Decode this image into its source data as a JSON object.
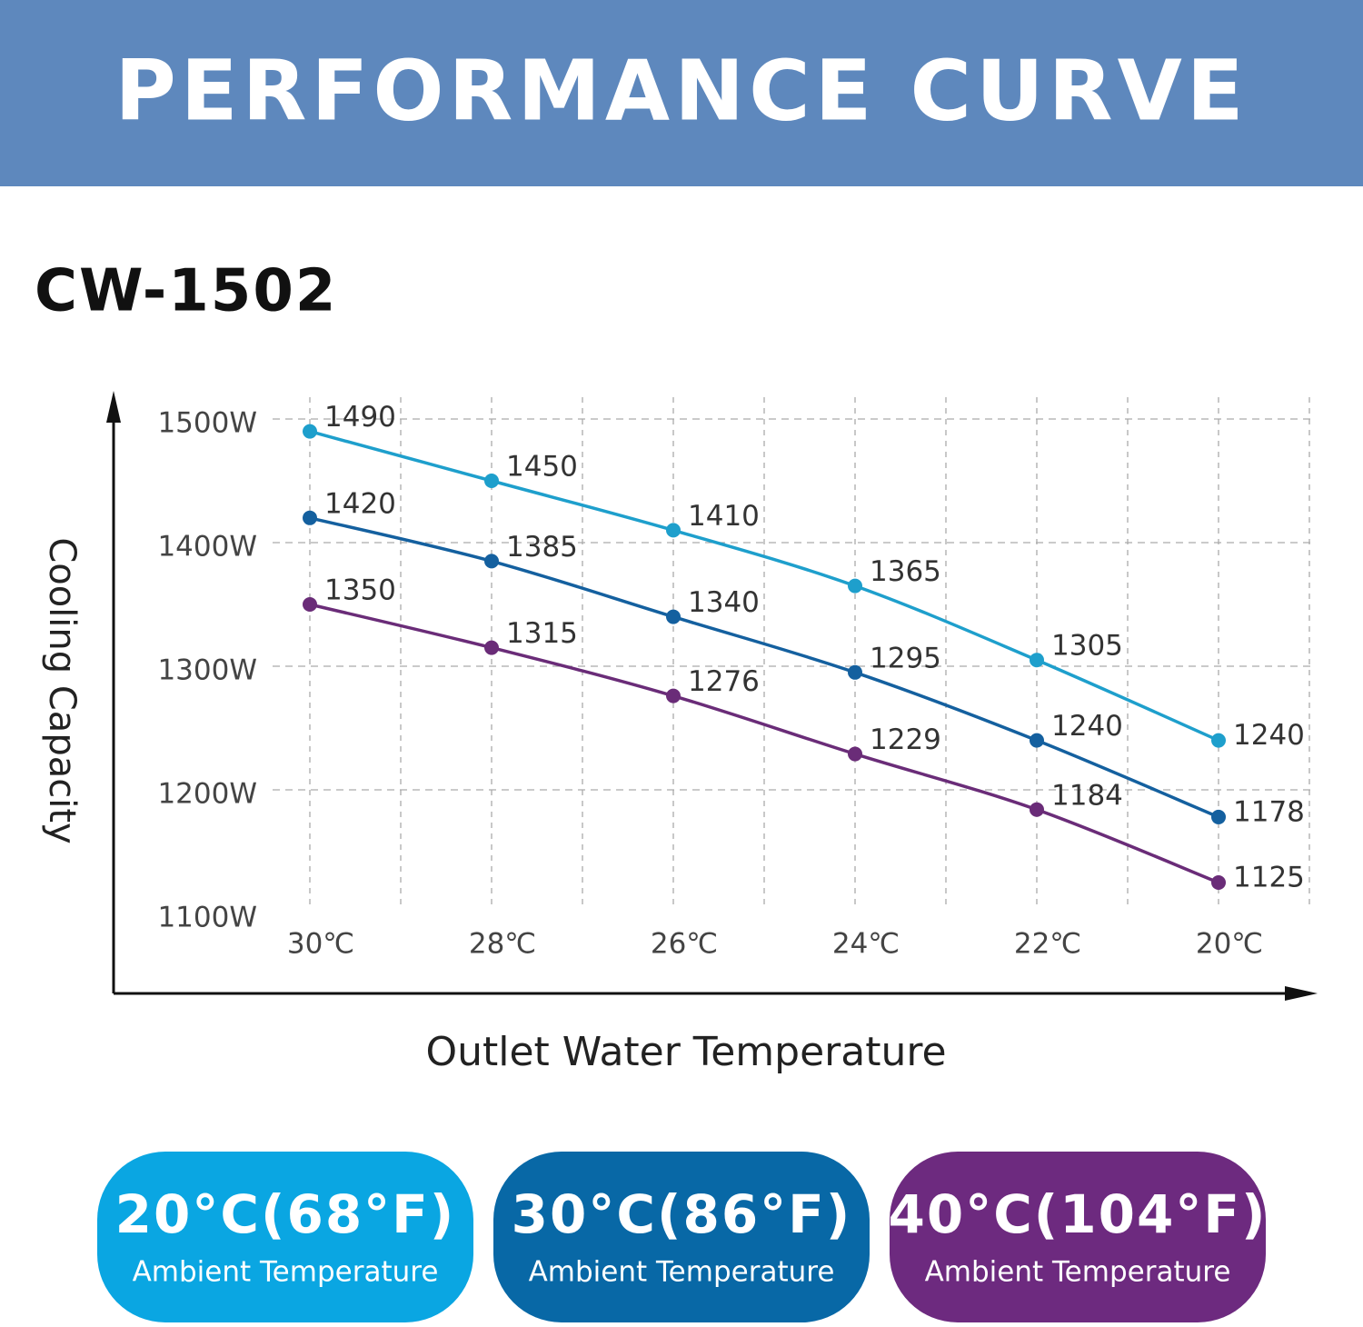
{
  "header": {
    "title": "PERFORMANCE CURVE"
  },
  "chart_data": {
    "type": "line",
    "title": "CW-1502",
    "y_label": "Cooling Capacity",
    "x_label": "Outlet Water Temperature",
    "categories": [
      "30℃",
      "28℃",
      "26℃",
      "24℃",
      "22℃",
      "20℃"
    ],
    "ylim": [
      1100,
      1500
    ],
    "yticks": [
      {
        "value": 1100,
        "label": "1100W"
      },
      {
        "value": 1200,
        "label": "1200W"
      },
      {
        "value": 1300,
        "label": "1300W"
      },
      {
        "value": 1400,
        "label": "1400W"
      },
      {
        "value": 1500,
        "label": "1500W"
      }
    ],
    "grid": true,
    "legend_subtitle": "Ambient Temperature",
    "series": [
      {
        "name": "20°C(68°F)",
        "color": "#1e9fcc",
        "badge_color": "#0aa6e2",
        "values": [
          1490,
          1450,
          1410,
          1365,
          1305,
          1240
        ]
      },
      {
        "name": "30°C(86°F)",
        "color": "#14609f",
        "badge_color": "#0868a6",
        "values": [
          1420,
          1385,
          1340,
          1295,
          1240,
          1178
        ]
      },
      {
        "name": "40°C(104°F)",
        "color": "#6a2c78",
        "badge_color": "#6d2a7f",
        "values": [
          1350,
          1315,
          1276,
          1229,
          1184,
          1125
        ]
      }
    ]
  }
}
